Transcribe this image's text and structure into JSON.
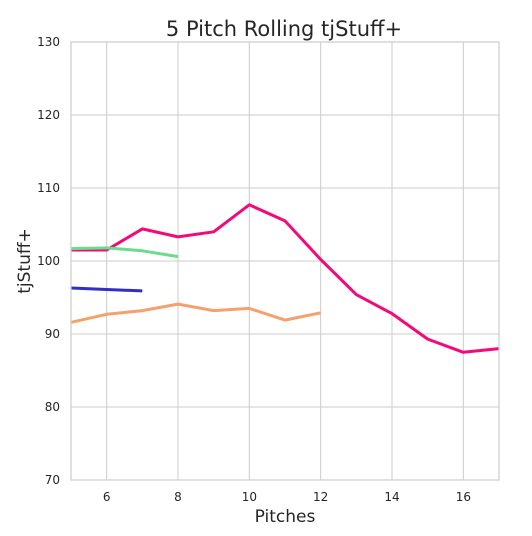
{
  "chart_data": {
    "type": "line",
    "title": "5 Pitch Rolling tjStuff+",
    "xlabel": "Pitches",
    "ylabel": "tjStuff+",
    "xlim": [
      5,
      17
    ],
    "ylim": [
      70,
      130
    ],
    "xticks": [
      6,
      8,
      10,
      12,
      14,
      16
    ],
    "yticks": [
      70,
      80,
      90,
      100,
      110,
      120,
      130
    ],
    "grid": true,
    "legend": "none",
    "series": [
      {
        "color": "#F20A7A",
        "x": [
          5,
          6,
          7,
          8,
          9,
          10,
          11,
          12,
          13,
          14,
          15,
          16,
          17
        ],
        "y": [
          101.5,
          101.5,
          104.4,
          103.3,
          104.0,
          107.7,
          105.5,
          100.2,
          95.4,
          92.8,
          89.3,
          87.5,
          88.0
        ]
      },
      {
        "color": "#6BDC8B",
        "x": [
          5,
          6,
          7,
          8
        ],
        "y": [
          101.7,
          101.8,
          101.4,
          100.6
        ]
      },
      {
        "color": "#3030C8",
        "x": [
          5,
          6,
          7
        ],
        "y": [
          96.3,
          96.1,
          95.9
        ]
      },
      {
        "color": "#F4A16D",
        "x": [
          5,
          6,
          7,
          8,
          9,
          10,
          11,
          12
        ],
        "y": [
          91.6,
          92.7,
          93.2,
          94.1,
          93.2,
          93.5,
          91.9,
          92.9
        ]
      }
    ]
  }
}
